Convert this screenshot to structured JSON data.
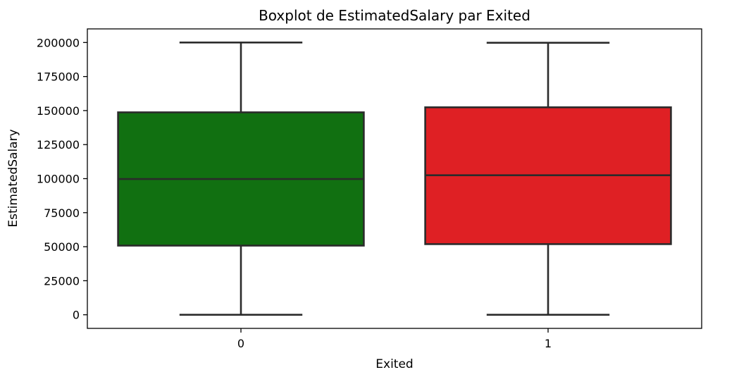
{
  "chart_data": {
    "type": "boxplot",
    "title": "Boxplot de EstimatedSalary par Exited",
    "xlabel": "Exited",
    "ylabel": "EstimatedSalary",
    "categories": [
      "0",
      "1"
    ],
    "ylim": [
      -10000,
      210000
    ],
    "yticks": [
      0,
      25000,
      50000,
      75000,
      100000,
      125000,
      150000,
      175000,
      200000
    ],
    "grid": false,
    "boxes": [
      {
        "category": "0",
        "whisker_low": 0,
        "q1": 50800,
        "median": 99700,
        "q3": 148700,
        "whisker_high": 200000,
        "color": "#117011"
      },
      {
        "category": "1",
        "whisker_low": 0,
        "q1": 51900,
        "median": 102500,
        "q3": 152400,
        "whisker_high": 199800,
        "color": "#df2024"
      }
    ],
    "line_color": "#2b2b2b"
  }
}
